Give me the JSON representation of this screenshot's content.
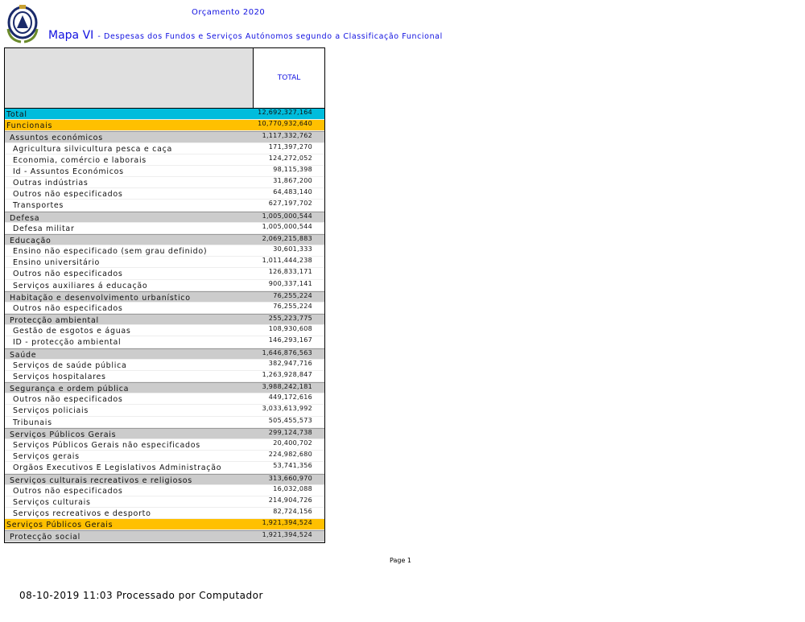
{
  "header": {
    "budget_title": "Orçamento 2020",
    "map_label": "Mapa VI",
    "map_subtitle": "- Despesas dos Fundos e Serviços Autónomos segundo a Classificação Funcional"
  },
  "table": {
    "column_header": "TOTAL",
    "rows": [
      {
        "label": "Total",
        "value": "12,692,327,164",
        "style": "total",
        "level": 0
      },
      {
        "label": "Funcionais",
        "value": "10,770,932,640",
        "style": "orange",
        "level": 0
      },
      {
        "label": "Assuntos económicos",
        "value": "1,117,332,762",
        "style": "gray",
        "level": 1
      },
      {
        "label": "Agricultura silvicultura pesca e caça",
        "value": "171,397,270",
        "style": "white",
        "level": 2
      },
      {
        "label": "Economia, comércio e laborais",
        "value": "124,272,052",
        "style": "white",
        "level": 2
      },
      {
        "label": "Id - Assuntos Económicos",
        "value": "98,115,398",
        "style": "white",
        "level": 2
      },
      {
        "label": "Outras indústrias",
        "value": "31,867,200",
        "style": "white",
        "level": 2
      },
      {
        "label": "Outros não especificados",
        "value": "64,483,140",
        "style": "white",
        "level": 2
      },
      {
        "label": "Transportes",
        "value": "627,197,702",
        "style": "white",
        "level": 2
      },
      {
        "label": "Defesa",
        "value": "1,005,000,544",
        "style": "gray",
        "level": 1
      },
      {
        "label": "Defesa militar",
        "value": "1,005,000,544",
        "style": "white",
        "level": 2
      },
      {
        "label": "Educação",
        "value": "2,069,215,883",
        "style": "gray",
        "level": 1
      },
      {
        "label": "Ensino não especificado (sem grau definido)",
        "value": "30,601,333",
        "style": "white",
        "level": 2
      },
      {
        "label": "Ensino universitário",
        "value": "1,011,444,238",
        "style": "white",
        "level": 2
      },
      {
        "label": "Outros não especificados",
        "value": "126,833,171",
        "style": "white",
        "level": 2
      },
      {
        "label": "Serviços auxiliares á educação",
        "value": "900,337,141",
        "style": "white",
        "level": 2
      },
      {
        "label": "Habitação e desenvolvimento urbanístico",
        "value": "76,255,224",
        "style": "gray",
        "level": 1
      },
      {
        "label": "Outros não especificados",
        "value": "76,255,224",
        "style": "white",
        "level": 2
      },
      {
        "label": "Protecção ambiental",
        "value": "255,223,775",
        "style": "gray",
        "level": 1
      },
      {
        "label": "Gestão de esgotos e águas",
        "value": "108,930,608",
        "style": "white",
        "level": 2
      },
      {
        "label": "ID - protecção ambiental",
        "value": "146,293,167",
        "style": "white",
        "level": 2
      },
      {
        "label": "Saúde",
        "value": "1,646,876,563",
        "style": "gray",
        "level": 1
      },
      {
        "label": "Serviços de saúde pública",
        "value": "382,947,716",
        "style": "white",
        "level": 2
      },
      {
        "label": "Serviços hospitalares",
        "value": "1,263,928,847",
        "style": "white",
        "level": 2
      },
      {
        "label": "Segurança e ordem pública",
        "value": "3,988,242,181",
        "style": "gray",
        "level": 1
      },
      {
        "label": "Outros não especificados",
        "value": "449,172,616",
        "style": "white",
        "level": 2
      },
      {
        "label": "Serviços policiais",
        "value": "3,033,613,992",
        "style": "white",
        "level": 2
      },
      {
        "label": "Tribunais",
        "value": "505,455,573",
        "style": "white",
        "level": 2
      },
      {
        "label": "Serviços Públicos Gerais",
        "value": "299,124,738",
        "style": "gray",
        "level": 1
      },
      {
        "label": "Serviços Públicos Gerais não especificados",
        "value": "20,400,702",
        "style": "white",
        "level": 2
      },
      {
        "label": "Serviços gerais",
        "value": "224,982,680",
        "style": "white",
        "level": 2
      },
      {
        "label": "Orgãos Executivos E Legislativos Administração",
        "value": "53,741,356",
        "style": "white",
        "level": 2
      },
      {
        "label": "Serviços culturais recreativos e religiosos",
        "value": "313,660,970",
        "style": "gray",
        "level": 1
      },
      {
        "label": "Outros não especificados",
        "value": "16,032,088",
        "style": "white",
        "level": 2
      },
      {
        "label": "Serviços culturais",
        "value": "214,904,726",
        "style": "white",
        "level": 2
      },
      {
        "label": "Serviços recreativos e desporto",
        "value": "82,724,156",
        "style": "white",
        "level": 2
      },
      {
        "label": "Serviços Públicos Gerais",
        "value": "1,921,394,524",
        "style": "orange",
        "level": 0
      },
      {
        "label": "Protecção social",
        "value": "1,921,394,524",
        "style": "gray",
        "level": 1
      }
    ]
  },
  "page_label": "Page 1",
  "footer": "08-10-2019 11:03   Processado por Computador",
  "colors": {
    "title_blue": "#1010e0",
    "total_row": "#00bcdc",
    "group_row": "#ffc000",
    "category_row": "#cccccc"
  }
}
